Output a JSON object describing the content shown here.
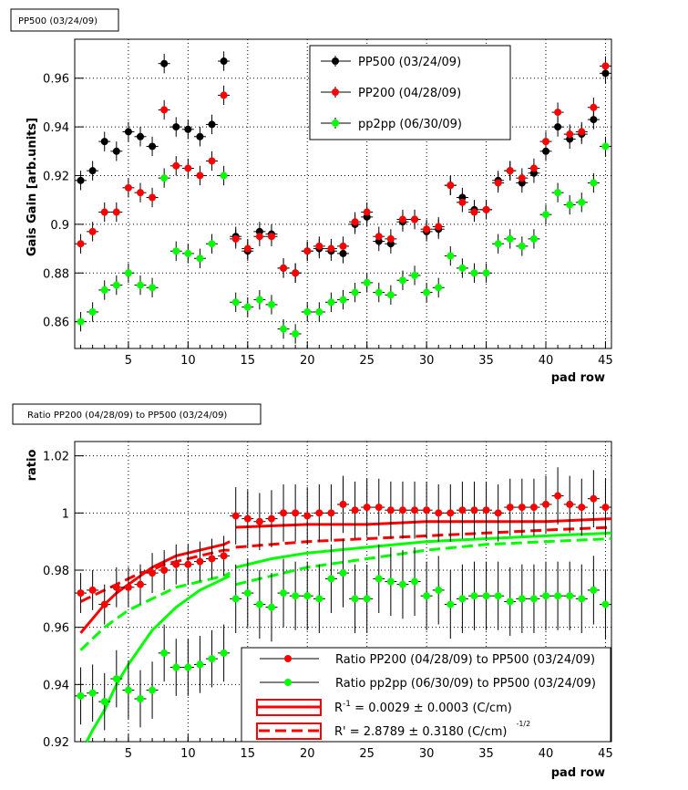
{
  "chart_data": [
    {
      "type": "scatter",
      "title": "PP500 (03/24/09)",
      "xlabel": "pad row",
      "ylabel": "Gais Gain [arb.units]",
      "xlim": [
        0.5,
        45.5
      ],
      "ylim": [
        0.849,
        0.976
      ],
      "xticks": [
        5,
        10,
        15,
        20,
        25,
        30,
        35,
        40,
        45
      ],
      "yticks": [
        0.86,
        0.88,
        0.9,
        0.92,
        0.94,
        0.96
      ],
      "grid": true,
      "legend_position": "top-right",
      "series": [
        {
          "name": "PP500 (03/24/09)",
          "color": "#000000",
          "yerr": 0.004,
          "x": [
            1,
            2,
            3,
            4,
            5,
            6,
            7,
            8,
            9,
            10,
            11,
            12,
            13,
            14,
            15,
            16,
            17,
            18,
            19,
            20,
            21,
            22,
            23,
            24,
            25,
            26,
            27,
            28,
            29,
            30,
            31,
            32,
            33,
            34,
            35,
            36,
            37,
            38,
            39,
            40,
            41,
            42,
            43,
            44,
            45
          ],
          "y": [
            0.918,
            0.922,
            0.934,
            0.93,
            0.938,
            0.936,
            0.932,
            0.966,
            0.94,
            0.939,
            0.936,
            0.941,
            0.967,
            0.895,
            0.889,
            0.897,
            0.896,
            0.882,
            0.88,
            0.889,
            0.89,
            0.889,
            0.888,
            0.9,
            0.903,
            0.893,
            0.892,
            0.901,
            0.902,
            0.897,
            0.898,
            0.916,
            0.911,
            0.906,
            0.906,
            0.918,
            0.922,
            0.917,
            0.921,
            0.93,
            0.94,
            0.935,
            0.937,
            0.943,
            0.962
          ]
        },
        {
          "name": "PP200 (04/28/09)",
          "color": "#ff0000",
          "yerr": 0.004,
          "x": [
            1,
            2,
            3,
            4,
            5,
            6,
            7,
            8,
            9,
            10,
            11,
            12,
            13,
            14,
            15,
            16,
            17,
            18,
            19,
            20,
            21,
            22,
            23,
            24,
            25,
            26,
            27,
            28,
            29,
            30,
            31,
            32,
            33,
            34,
            35,
            36,
            37,
            38,
            39,
            40,
            41,
            42,
            43,
            44,
            45
          ],
          "y": [
            0.892,
            0.897,
            0.905,
            0.905,
            0.915,
            0.913,
            0.911,
            0.947,
            0.924,
            0.923,
            0.92,
            0.926,
            0.953,
            0.894,
            0.89,
            0.895,
            0.895,
            0.882,
            0.88,
            0.889,
            0.891,
            0.89,
            0.891,
            0.901,
            0.905,
            0.895,
            0.894,
            0.902,
            0.902,
            0.898,
            0.899,
            0.916,
            0.909,
            0.905,
            0.906,
            0.917,
            0.922,
            0.919,
            0.923,
            0.934,
            0.946,
            0.937,
            0.938,
            0.948,
            0.965
          ]
        },
        {
          "name": "pp2pp (06/30/09)",
          "color": "#00ff00",
          "yerr": 0.004,
          "x": [
            1,
            2,
            3,
            4,
            5,
            6,
            7,
            8,
            9,
            10,
            11,
            12,
            13,
            14,
            15,
            16,
            17,
            18,
            19,
            20,
            21,
            22,
            23,
            24,
            25,
            26,
            27,
            28,
            29,
            30,
            31,
            32,
            33,
            34,
            35,
            36,
            37,
            38,
            39,
            40,
            41,
            42,
            43,
            44,
            45
          ],
          "y": [
            0.86,
            0.864,
            0.873,
            0.875,
            0.88,
            0.875,
            0.874,
            0.919,
            0.889,
            0.888,
            0.886,
            0.892,
            0.92,
            0.868,
            0.866,
            0.869,
            0.867,
            0.857,
            0.855,
            0.864,
            0.864,
            0.868,
            0.869,
            0.872,
            0.876,
            0.872,
            0.871,
            0.877,
            0.879,
            0.872,
            0.874,
            0.887,
            0.882,
            0.88,
            0.88,
            0.892,
            0.894,
            0.891,
            0.894,
            0.904,
            0.913,
            0.908,
            0.909,
            0.917,
            0.932
          ]
        }
      ]
    },
    {
      "type": "scatter",
      "title": "Ratio PP200 (04/28/09) to PP500 (03/24/09)",
      "xlabel": "pad row",
      "ylabel": "ratio",
      "xlim": [
        0.5,
        45.5
      ],
      "ylim": [
        0.92,
        1.025
      ],
      "xticks": [
        5,
        10,
        15,
        20,
        25,
        30,
        35,
        40,
        45
      ],
      "yticks": [
        0.92,
        0.94,
        0.96,
        0.98,
        1,
        1.02
      ],
      "yticklabels": [
        "0.92",
        "0.94",
        "0.96",
        "0.98",
        "1",
        "1.02"
      ],
      "grid": true,
      "legend_position": "bottom-right",
      "series": [
        {
          "name": "Ratio PP200 (04/28/09) to PP500 (03/24/09)",
          "color": "#ff0000",
          "x": [
            1,
            2,
            3,
            4,
            5,
            6,
            7,
            8,
            9,
            10,
            11,
            12,
            13,
            14,
            15,
            16,
            17,
            18,
            19,
            20,
            21,
            22,
            23,
            24,
            25,
            26,
            27,
            28,
            29,
            30,
            31,
            32,
            33,
            34,
            35,
            36,
            37,
            38,
            39,
            40,
            41,
            42,
            43,
            44,
            45
          ],
          "y": [
            0.972,
            0.973,
            0.968,
            0.974,
            0.974,
            0.975,
            0.979,
            0.98,
            0.982,
            0.982,
            0.983,
            0.984,
            0.985,
            0.999,
            0.998,
            0.997,
            0.998,
            1.0,
            1.0,
            0.999,
            1.0,
            1.0,
            1.003,
            1.001,
            1.002,
            1.002,
            1.001,
            1.001,
            1.001,
            1.001,
            1.0,
            1.0,
            1.001,
            1.001,
            1.001,
            1.0,
            1.002,
            1.002,
            1.002,
            1.003,
            1.006,
            1.003,
            1.002,
            1.005,
            1.002
          ],
          "yerr": [
            0.007,
            0.007,
            0.007,
            0.007,
            0.007,
            0.007,
            0.007,
            0.007,
            0.007,
            0.007,
            0.007,
            0.007,
            0.007,
            0.01,
            0.01,
            0.01,
            0.01,
            0.01,
            0.01,
            0.01,
            0.01,
            0.01,
            0.01,
            0.01,
            0.01,
            0.01,
            0.01,
            0.01,
            0.01,
            0.01,
            0.01,
            0.01,
            0.01,
            0.01,
            0.01,
            0.01,
            0.01,
            0.01,
            0.01,
            0.01,
            0.01,
            0.01,
            0.01,
            0.01,
            0.01
          ]
        },
        {
          "name": "Ratio pp2pp (06/30/09) to PP500 (03/24/09)",
          "color": "#00ff00",
          "x": [
            1,
            2,
            3,
            4,
            5,
            6,
            7,
            8,
            9,
            10,
            11,
            12,
            13,
            14,
            15,
            16,
            17,
            18,
            19,
            20,
            21,
            22,
            23,
            24,
            25,
            26,
            27,
            28,
            29,
            30,
            31,
            32,
            33,
            34,
            35,
            36,
            37,
            38,
            39,
            40,
            41,
            42,
            43,
            44,
            45
          ],
          "y": [
            0.936,
            0.937,
            0.934,
            0.942,
            0.938,
            0.935,
            0.938,
            0.951,
            0.946,
            0.946,
            0.947,
            0.949,
            0.951,
            0.97,
            0.972,
            0.968,
            0.967,
            0.972,
            0.971,
            0.971,
            0.97,
            0.977,
            0.979,
            0.97,
            0.97,
            0.977,
            0.976,
            0.975,
            0.976,
            0.971,
            0.973,
            0.968,
            0.97,
            0.971,
            0.971,
            0.971,
            0.969,
            0.97,
            0.97,
            0.971,
            0.971,
            0.971,
            0.97,
            0.973,
            0.968
          ],
          "yerr": [
            0.01,
            0.01,
            0.01,
            0.01,
            0.01,
            0.01,
            0.01,
            0.01,
            0.01,
            0.01,
            0.01,
            0.01,
            0.01,
            0.012,
            0.012,
            0.012,
            0.012,
            0.012,
            0.012,
            0.012,
            0.012,
            0.012,
            0.012,
            0.012,
            0.012,
            0.012,
            0.012,
            0.012,
            0.012,
            0.012,
            0.012,
            0.012,
            0.012,
            0.012,
            0.012,
            0.012,
            0.012,
            0.012,
            0.012,
            0.012,
            0.012,
            0.012,
            0.012,
            0.012,
            0.012
          ]
        }
      ],
      "fits": [
        {
          "color": "#ff0000",
          "style": "solid",
          "x": [
            1,
            2,
            3,
            4,
            5,
            6,
            7,
            8,
            9,
            10,
            11,
            12,
            13,
            13.5
          ],
          "y": [
            0.958,
            0.963,
            0.968,
            0.972,
            0.975,
            0.978,
            0.981,
            0.983,
            0.985,
            0.986,
            0.987,
            0.988,
            0.989,
            0.99
          ]
        },
        {
          "color": "#ff0000",
          "style": "solid",
          "x": [
            14,
            20,
            25,
            30,
            35,
            40,
            45.5
          ],
          "y": [
            0.995,
            0.996,
            0.996,
            0.997,
            0.997,
            0.997,
            0.998
          ]
        },
        {
          "color": "#ff0000",
          "style": "dashed",
          "x": [
            1,
            2,
            3,
            4,
            5,
            6,
            7,
            8,
            9,
            10,
            11,
            12,
            13,
            13.5
          ],
          "y": [
            0.969,
            0.971,
            0.973,
            0.975,
            0.977,
            0.979,
            0.98,
            0.982,
            0.983,
            0.984,
            0.985,
            0.986,
            0.987,
            0.987
          ]
        },
        {
          "color": "#ff0000",
          "style": "dashed",
          "x": [
            14,
            20,
            25,
            30,
            35,
            40,
            45.5
          ],
          "y": [
            0.988,
            0.99,
            0.991,
            0.992,
            0.993,
            0.994,
            0.995
          ]
        },
        {
          "color": "#00ff00",
          "style": "solid",
          "x": [
            1.5,
            2,
            3,
            4,
            5,
            6,
            7,
            8,
            9,
            10,
            11,
            12,
            13,
            13.5
          ],
          "y": [
            0.92,
            0.924,
            0.931,
            0.94,
            0.947,
            0.953,
            0.959,
            0.963,
            0.967,
            0.97,
            0.973,
            0.975,
            0.977,
            0.978
          ]
        },
        {
          "color": "#00ff00",
          "style": "solid",
          "x": [
            14,
            17,
            20,
            25,
            30,
            35,
            40,
            45.5
          ],
          "y": [
            0.981,
            0.984,
            0.986,
            0.988,
            0.99,
            0.991,
            0.992,
            0.993
          ]
        },
        {
          "color": "#00ff00",
          "style": "dashed",
          "x": [
            1,
            2,
            3,
            4,
            5,
            6,
            7,
            8,
            9,
            10,
            11,
            12,
            13,
            13.5
          ],
          "y": [
            0.952,
            0.956,
            0.96,
            0.963,
            0.966,
            0.968,
            0.97,
            0.972,
            0.974,
            0.975,
            0.976,
            0.977,
            0.978,
            0.979
          ]
        },
        {
          "color": "#00ff00",
          "style": "dashed",
          "x": [
            14,
            17,
            20,
            25,
            30,
            35,
            40,
            45.5
          ],
          "y": [
            0.975,
            0.978,
            0.981,
            0.984,
            0.987,
            0.989,
            0.99,
            0.991
          ]
        }
      ],
      "legend_extra": [
        {
          "label": "R",
          "sup": "-1",
          "text": " = 0.0029  ± 0.0003 (C/cm)",
          "style": "solid"
        },
        {
          "label": "R' = 2.8789  ± 0.3180 (C/cm)",
          "sup": "-1/2",
          "style": "dashed"
        }
      ]
    }
  ]
}
